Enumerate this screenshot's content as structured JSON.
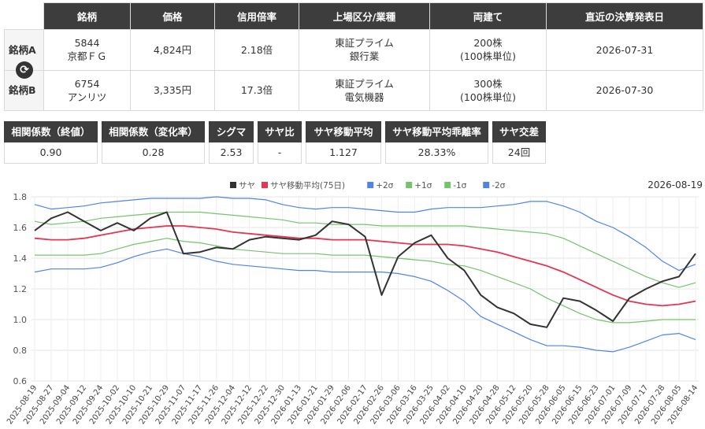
{
  "table": {
    "headers": [
      "銘柄",
      "価格",
      "信用倍率",
      "上場区分/業種",
      "両建て",
      "直近の決算発表日"
    ],
    "rows": [
      {
        "label": "銘柄A",
        "code": "5844",
        "name": "京都ＦＧ",
        "price": "4,824円",
        "margin": "2.18倍",
        "market": "東証プライム",
        "sector": "銀行業",
        "hedge_qty": "200株",
        "hedge_unit": "(100株単位)",
        "date": "2026-07-31"
      },
      {
        "label": "銘柄B",
        "code": "6754",
        "name": "アンリツ",
        "price": "3,335円",
        "margin": "17.3倍",
        "market": "東証プライム",
        "sector": "電気機器",
        "hedge_qty": "300株",
        "hedge_unit": "(100株単位)",
        "date": "2026-07-30"
      }
    ],
    "swap_icon": "refresh-icon"
  },
  "stats": [
    {
      "label": "相関係数（終値）",
      "value": "0.90"
    },
    {
      "label": "相関係数（変化率）",
      "value": "0.28"
    },
    {
      "label": "シグマ",
      "value": "2.53"
    },
    {
      "label": "サヤ比",
      "value": "-"
    },
    {
      "label": "サヤ移動平均",
      "value": "1.127"
    },
    {
      "label": "サヤ移動平均乖離率",
      "value": "28.33%"
    },
    {
      "label": "サヤ交差",
      "value": "24回"
    }
  ],
  "chart_data": {
    "type": "line",
    "date_label": "2026-08-19",
    "ylim": [
      0.6,
      1.8
    ],
    "yticks": [
      "0.6",
      "0.8",
      "1.0",
      "1.2",
      "1.4",
      "1.6",
      "1.8"
    ],
    "grid": true,
    "legend_position": "top",
    "categories": [
      "2025-08-19",
      "2025-08-27",
      "2025-09-04",
      "2025-09-12",
      "2025-09-24",
      "2025-10-02",
      "2025-10-10",
      "2025-10-21",
      "2025-10-29",
      "2025-11-07",
      "2025-11-17",
      "2025-11-26",
      "2025-12-04",
      "2025-12-12",
      "2025-12-22",
      "2025-12-30",
      "2026-01-13",
      "2026-01-21",
      "2026-01-29",
      "2026-02-06",
      "2026-02-17",
      "2026-02-26",
      "2026-03-06",
      "2026-03-16",
      "2026-03-25",
      "2026-04-02",
      "2026-04-10",
      "2026-04-20",
      "2026-04-28",
      "2026-05-12",
      "2026-05-20",
      "2026-05-28",
      "2026-06-05",
      "2026-06-15",
      "2026-06-23",
      "2026-07-01",
      "2026-07-09",
      "2026-07-17",
      "2026-07-28",
      "2026-08-05",
      "2026-08-14"
    ],
    "series": [
      {
        "name": "サヤ",
        "color": "#333333",
        "values": [
          1.58,
          1.66,
          1.7,
          1.64,
          1.58,
          1.63,
          1.58,
          1.66,
          1.7,
          1.43,
          1.44,
          1.47,
          1.46,
          1.52,
          1.54,
          1.53,
          1.52,
          1.55,
          1.64,
          1.62,
          1.54,
          1.16,
          1.41,
          1.5,
          1.55,
          1.4,
          1.32,
          1.16,
          1.08,
          1.04,
          0.97,
          0.95,
          1.14,
          1.12,
          1.06,
          0.99,
          1.14,
          1.2,
          1.25,
          1.28,
          1.43
        ]
      },
      {
        "name": "サヤ移動平均(75日)",
        "color": "#e53552",
        "values": [
          1.53,
          1.52,
          1.52,
          1.53,
          1.55,
          1.57,
          1.59,
          1.6,
          1.61,
          1.61,
          1.6,
          1.59,
          1.57,
          1.56,
          1.55,
          1.54,
          1.53,
          1.53,
          1.52,
          1.52,
          1.52,
          1.51,
          1.5,
          1.49,
          1.49,
          1.49,
          1.48,
          1.46,
          1.44,
          1.41,
          1.38,
          1.35,
          1.31,
          1.26,
          1.21,
          1.16,
          1.12,
          1.1,
          1.09,
          1.1,
          1.12
        ]
      },
      {
        "name": "+2σ",
        "color": "#4f83ea",
        "values": [
          1.75,
          1.72,
          1.73,
          1.74,
          1.76,
          1.77,
          1.78,
          1.79,
          1.79,
          1.79,
          1.79,
          1.8,
          1.79,
          1.79,
          1.78,
          1.75,
          1.73,
          1.72,
          1.73,
          1.73,
          1.72,
          1.71,
          1.7,
          1.7,
          1.72,
          1.73,
          1.73,
          1.73,
          1.74,
          1.75,
          1.77,
          1.77,
          1.74,
          1.7,
          1.64,
          1.6,
          1.54,
          1.47,
          1.38,
          1.32,
          1.36
        ]
      },
      {
        "name": "+1σ",
        "color": "#73c46b",
        "values": [
          1.64,
          1.62,
          1.63,
          1.64,
          1.66,
          1.67,
          1.68,
          1.69,
          1.7,
          1.7,
          1.7,
          1.69,
          1.68,
          1.67,
          1.66,
          1.65,
          1.63,
          1.63,
          1.62,
          1.62,
          1.62,
          1.61,
          1.61,
          1.61,
          1.61,
          1.61,
          1.61,
          1.6,
          1.59,
          1.58,
          1.57,
          1.56,
          1.53,
          1.48,
          1.43,
          1.38,
          1.33,
          1.28,
          1.24,
          1.21,
          1.24
        ]
      },
      {
        "name": "-1σ",
        "color": "#73c46b",
        "values": [
          1.42,
          1.42,
          1.42,
          1.42,
          1.43,
          1.46,
          1.49,
          1.51,
          1.53,
          1.51,
          1.5,
          1.48,
          1.46,
          1.45,
          1.44,
          1.43,
          1.43,
          1.43,
          1.42,
          1.42,
          1.42,
          1.41,
          1.4,
          1.39,
          1.38,
          1.36,
          1.35,
          1.32,
          1.28,
          1.24,
          1.2,
          1.14,
          1.09,
          1.04,
          1.0,
          0.98,
          0.98,
          0.99,
          1.0,
          1.0,
          1.0
        ]
      },
      {
        "name": "-2σ",
        "color": "#4f83ea",
        "values": [
          1.31,
          1.33,
          1.33,
          1.33,
          1.34,
          1.37,
          1.41,
          1.44,
          1.46,
          1.43,
          1.41,
          1.38,
          1.36,
          1.35,
          1.34,
          1.33,
          1.32,
          1.32,
          1.31,
          1.31,
          1.31,
          1.31,
          1.3,
          1.28,
          1.25,
          1.19,
          1.12,
          1.02,
          0.97,
          0.92,
          0.87,
          0.83,
          0.83,
          0.82,
          0.8,
          0.79,
          0.82,
          0.86,
          0.9,
          0.91,
          0.87
        ]
      }
    ]
  }
}
